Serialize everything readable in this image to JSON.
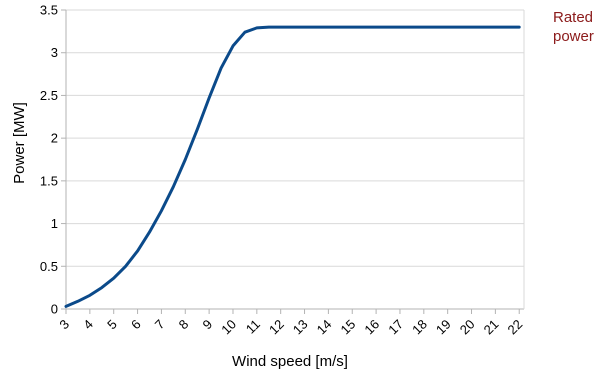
{
  "chart_data": {
    "type": "line",
    "xlabel": "Wind speed  [m/s]",
    "ylabel": "Power [MW]",
    "annotation": "Rated power",
    "x": [
      3,
      3.5,
      4,
      4.5,
      5,
      5.5,
      6,
      6.5,
      7,
      7.5,
      8,
      8.5,
      9,
      9.5,
      10,
      10.5,
      11,
      11.5,
      12,
      13,
      14,
      15,
      16,
      17,
      18,
      19,
      20,
      21,
      22
    ],
    "series": [
      {
        "values": [
          0.03,
          0.09,
          0.16,
          0.25,
          0.36,
          0.5,
          0.68,
          0.9,
          1.15,
          1.43,
          1.75,
          2.1,
          2.47,
          2.82,
          3.08,
          3.24,
          3.29,
          3.3,
          3.3,
          3.3,
          3.3,
          3.3,
          3.3,
          3.3,
          3.3,
          3.3,
          3.3,
          3.3,
          3.3
        ],
        "color": "#0b4a8a"
      }
    ],
    "xlim": [
      3,
      22.2
    ],
    "ylim": [
      0,
      3.5
    ],
    "xticks": [
      3,
      4,
      5,
      6,
      7,
      8,
      9,
      10,
      11,
      12,
      13,
      14,
      15,
      16,
      17,
      18,
      19,
      20,
      21,
      22
    ],
    "yticks": [
      0,
      0.5,
      1,
      1.5,
      2,
      2.5,
      3,
      3.5
    ],
    "grid": true,
    "annotation_color": "#8b1a1a"
  }
}
